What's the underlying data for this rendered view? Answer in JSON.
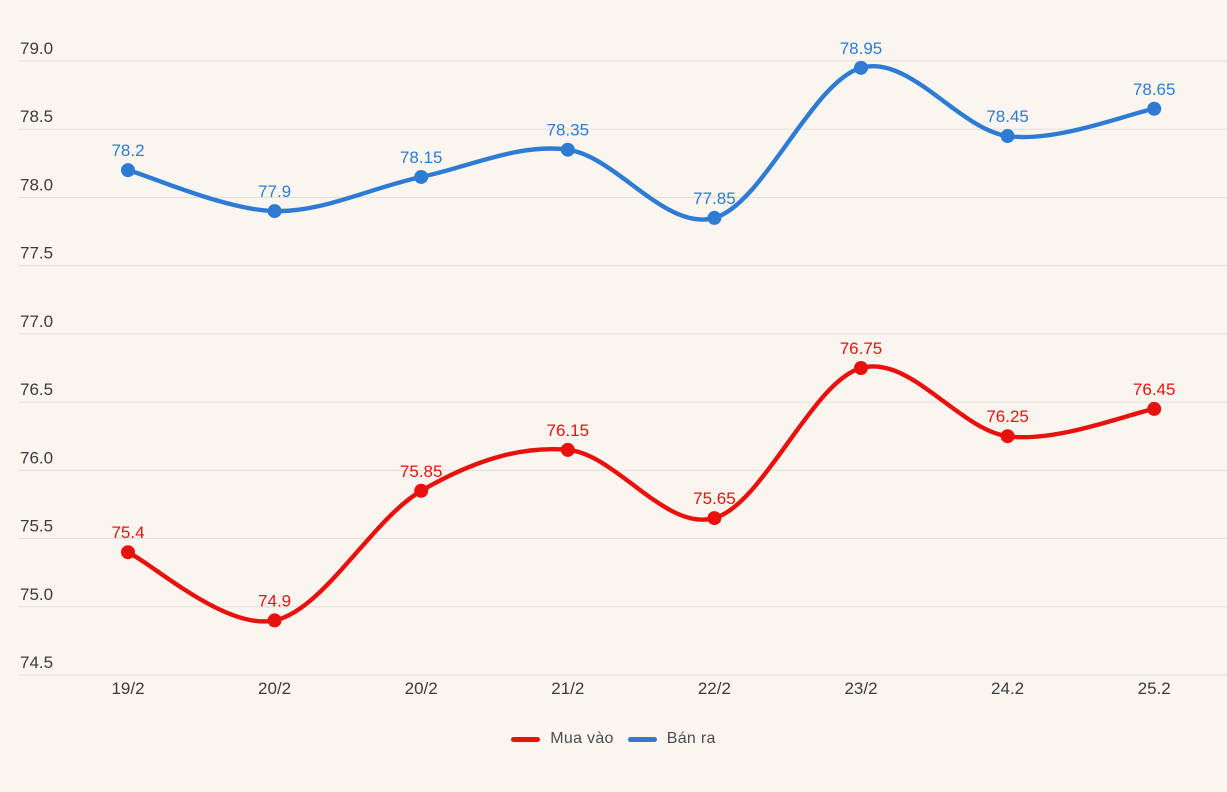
{
  "chart_data": {
    "type": "line",
    "categories": [
      "19/2",
      "20/2",
      "20/2",
      "21/2",
      "22/2",
      "23/2",
      "24.2",
      "25.2"
    ],
    "series": [
      {
        "name": "Mua vào",
        "color": "#e8110d",
        "values": [
          75.4,
          74.9,
          75.85,
          76.15,
          75.65,
          76.75,
          76.25,
          76.45
        ],
        "point_labels": [
          "75.4",
          "74.9",
          "75.85",
          "76.15",
          "75.65",
          "76.75",
          "76.25",
          "76.45"
        ]
      },
      {
        "name": "Bán ra",
        "color": "#2e7bd4",
        "values": [
          78.2,
          77.9,
          78.15,
          78.35,
          77.85,
          78.95,
          78.45,
          78.65
        ],
        "point_labels": [
          "78.2",
          "77.9",
          "78.15",
          "78.35",
          "77.85",
          "78.95",
          "78.45",
          "78.65"
        ]
      }
    ],
    "title": "",
    "xlabel": "",
    "ylabel": "",
    "ylim": [
      74.5,
      79.0
    ],
    "ytick_step": 0.5,
    "ytick_labels": [
      "74.5",
      "75.0",
      "75.5",
      "76.0",
      "76.5",
      "77.0",
      "77.5",
      "78.0",
      "78.5",
      "79.0"
    ],
    "grid": "horizontal",
    "smooth": true,
    "marker": "circle",
    "data_labels": "above-points",
    "legend_position": "bottom-center"
  },
  "legend": {
    "items": [
      {
        "label": "Mua vào",
        "color": "#e8110d"
      },
      {
        "label": "Bán ra",
        "color": "#2e7bd4"
      }
    ]
  },
  "theme": {
    "background": "#faf6ef",
    "gridline": "#e3dfd8",
    "axis_text": "#3b3b3b",
    "legend_text": "#4b4b50"
  }
}
